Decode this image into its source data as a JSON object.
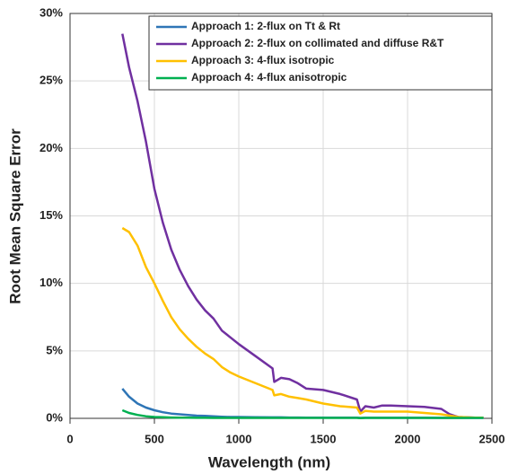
{
  "chart_data": {
    "type": "line",
    "xlabel": "Wavelength (nm)",
    "ylabel": "Root Mean Square Error",
    "x": [
      310,
      350,
      400,
      450,
      500,
      550,
      600,
      650,
      700,
      750,
      800,
      850,
      900,
      950,
      1000,
      1100,
      1200,
      1210,
      1250,
      1300,
      1350,
      1400,
      1500,
      1600,
      1700,
      1720,
      1750,
      1800,
      1850,
      1900,
      2000,
      2100,
      2200,
      2250,
      2300,
      2400,
      2450
    ],
    "series": [
      {
        "name": "Approach 1: 2-flux on Tt & Rt",
        "color": "#2e75b6",
        "values": [
          2.2,
          1.6,
          1.1,
          0.8,
          0.6,
          0.45,
          0.35,
          0.3,
          0.25,
          0.2,
          0.18,
          0.15,
          0.12,
          0.1,
          0.1,
          0.08,
          0.07,
          0.07,
          0.07,
          0.06,
          0.06,
          0.05,
          0.05,
          0.05,
          0.05,
          0.03,
          0.04,
          0.04,
          0.04,
          0.04,
          0.04,
          0.04,
          0.03,
          0.03,
          0.03,
          0.03,
          0.03
        ]
      },
      {
        "name": "Approach 2: 2-flux on collimated and diffuse R&T",
        "color": "#7030a0",
        "values": [
          28.5,
          26,
          23.5,
          20.5,
          17,
          14.5,
          12.5,
          11,
          9.8,
          8.8,
          8,
          7.4,
          6.5,
          6,
          5.5,
          4.6,
          3.7,
          2.7,
          3.0,
          2.9,
          2.6,
          2.2,
          2.1,
          1.8,
          1.4,
          0.5,
          0.9,
          0.8,
          0.95,
          0.95,
          0.9,
          0.85,
          0.7,
          0.3,
          0.1,
          0.05,
          0.05
        ]
      },
      {
        "name": "Approach 3: 4-flux isotropic",
        "color": "#ffc000",
        "values": [
          14.1,
          13.8,
          12.8,
          11.2,
          10,
          8.7,
          7.5,
          6.6,
          5.9,
          5.3,
          4.8,
          4.4,
          3.8,
          3.4,
          3.1,
          2.6,
          2.1,
          1.7,
          1.8,
          1.6,
          1.5,
          1.4,
          1.1,
          0.9,
          0.8,
          0.35,
          0.55,
          0.5,
          0.5,
          0.5,
          0.5,
          0.4,
          0.3,
          0.2,
          0.1,
          0.05,
          0.05
        ]
      },
      {
        "name": "Approach 4: 4-flux anisotropic",
        "color": "#00b050",
        "values": [
          0.6,
          0.4,
          0.25,
          0.15,
          0.1,
          0.08,
          0.06,
          0.05,
          0.05,
          0.04,
          0.04,
          0.03,
          0.03,
          0.03,
          0.03,
          0.03,
          0.03,
          0.03,
          0.03,
          0.03,
          0.03,
          0.03,
          0.03,
          0.03,
          0.03,
          0.02,
          0.03,
          0.03,
          0.03,
          0.03,
          0.03,
          0.03,
          0.03,
          0.03,
          0.03,
          0.03,
          0.03
        ]
      }
    ],
    "xlim": [
      0,
      2500
    ],
    "xticks": [
      0,
      500,
      1000,
      1500,
      2000,
      2500
    ],
    "ylim": [
      0,
      30
    ],
    "yticks": [
      {
        "value": 0,
        "label": "0%"
      },
      {
        "value": 5,
        "label": "5%"
      },
      {
        "value": 10,
        "label": "10%"
      },
      {
        "value": 15,
        "label": "15%"
      },
      {
        "value": 20,
        "label": "20%"
      },
      {
        "value": 25,
        "label": "25%"
      },
      {
        "value": 30,
        "label": "30%"
      }
    ],
    "grid": true,
    "legend": "top-right"
  }
}
